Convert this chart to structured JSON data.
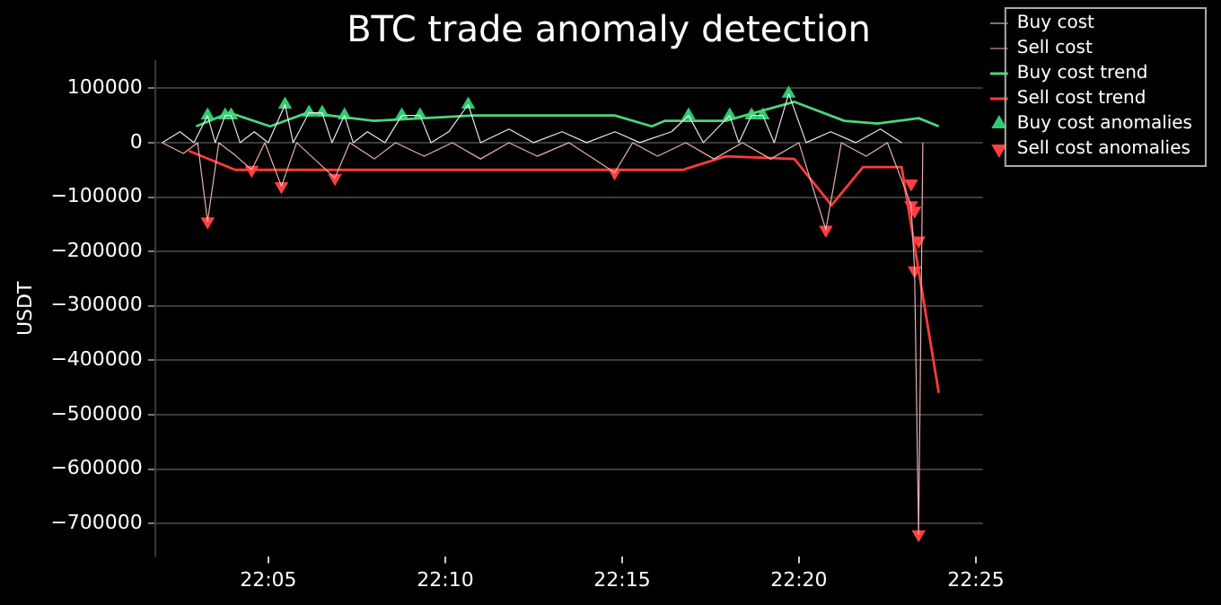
{
  "chart_data": {
    "type": "line",
    "title": "BTC trade anomaly detection",
    "ylabel": "USDT",
    "xlim": [
      22.03,
      22.42
    ],
    "xticks": [
      {
        "value": 22.0833,
        "label": "22:05"
      },
      {
        "value": 22.1667,
        "label": "22:10"
      },
      {
        "value": 22.25,
        "label": "22:15"
      },
      {
        "value": 22.3333,
        "label": "22:20"
      },
      {
        "value": 22.4167,
        "label": "22:25"
      }
    ],
    "ylim": [
      -760000,
      150000
    ],
    "yticks": [
      {
        "value": 100000,
        "label": "100000"
      },
      0,
      {
        "value": -100000,
        "label": "−100000"
      },
      {
        "value": -200000,
        "label": "−200000"
      },
      {
        "value": -300000,
        "label": "−300000"
      },
      {
        "value": -400000,
        "label": "−400000"
      },
      {
        "value": -500000,
        "label": "−500000"
      },
      {
        "value": -600000,
        "label": "−600000"
      },
      {
        "value": -700000,
        "label": "−700000"
      }
    ],
    "grid": "y",
    "legend": "top right",
    "series": [
      {
        "name": "Buy cost",
        "color": "#e8e8e8",
        "x": [
          22.0333,
          22.0417,
          22.0483,
          22.0547,
          22.0583,
          22.063,
          22.0658,
          22.07,
          22.0767,
          22.0833,
          22.0912,
          22.095,
          22.1025,
          22.1087,
          22.1133,
          22.1192,
          22.1233,
          22.13,
          22.1383,
          22.1462,
          22.1548,
          22.16,
          22.1683,
          22.1775,
          22.1833,
          22.1967,
          22.2083,
          22.2217,
          22.2333,
          22.2467,
          22.2583,
          22.2733,
          22.2813,
          22.2883,
          22.3007,
          22.305,
          22.311,
          22.3163,
          22.3217,
          22.3285,
          22.3367,
          22.3483,
          22.36,
          22.3717,
          22.3817
        ],
        "values": [
          0,
          20000,
          0,
          50000,
          0,
          50000,
          50000,
          0,
          20000,
          0,
          70000,
          0,
          55000,
          55000,
          0,
          50000,
          0,
          20000,
          0,
          50000,
          50000,
          0,
          20000,
          70000,
          0,
          25000,
          0,
          20000,
          0,
          20000,
          0,
          20000,
          50000,
          0,
          50000,
          0,
          50000,
          50000,
          0,
          90000,
          0,
          20000,
          0,
          25000,
          0
        ]
      },
      {
        "name": "Sell cost",
        "color": "#e8b0b0",
        "x": [
          22.0333,
          22.0433,
          22.05,
          22.0547,
          22.06,
          22.0683,
          22.0755,
          22.0817,
          22.0895,
          22.0967,
          22.105,
          22.1147,
          22.1217,
          22.1333,
          22.1433,
          22.1567,
          22.17,
          22.1833,
          22.1967,
          22.21,
          22.225,
          22.2367,
          22.2465,
          22.255,
          22.2667,
          22.28,
          22.2933,
          22.3067,
          22.32,
          22.3333,
          22.346,
          22.3533,
          22.365,
          22.375,
          22.3862,
          22.3878,
          22.3897,
          22.3917
        ],
        "values": [
          0,
          -20000,
          0,
          -145000,
          0,
          -25000,
          -50000,
          0,
          -80000,
          0,
          -30000,
          -65000,
          0,
          -30000,
          0,
          -25000,
          0,
          -30000,
          0,
          -25000,
          0,
          -30000,
          -55000,
          0,
          -25000,
          0,
          -30000,
          0,
          -30000,
          0,
          -160000,
          0,
          -25000,
          0,
          -115000,
          -235000,
          -720000,
          0
        ]
      },
      {
        "name": "Buy cost trend",
        "color": "#4cd47a",
        "x": [
          22.0493,
          22.065,
          22.0842,
          22.1017,
          22.133,
          22.1802,
          22.2465,
          22.264,
          22.27,
          22.2988,
          22.3312,
          22.3547,
          22.3703,
          22.3897,
          22.3992
        ],
        "values": [
          30000,
          55000,
          30000,
          55000,
          40000,
          50000,
          50000,
          30000,
          40000,
          40000,
          75000,
          40000,
          35000,
          45000,
          30000
        ]
      },
      {
        "name": "Sell cost trend",
        "color": "#ff3b3b",
        "x": [
          22.0458,
          22.0677,
          22.2787,
          22.2988,
          22.3312,
          22.3487,
          22.3635,
          22.3817,
          22.3992
        ],
        "values": [
          -15000,
          -50000,
          -50000,
          -25000,
          -30000,
          -115000,
          -45000,
          -45000,
          -460000
        ]
      },
      {
        "name": "Buy cost anomalies",
        "type": "scatter",
        "marker": "triangle",
        "color": "#2ecc71",
        "x": [
          22.0547,
          22.063,
          22.0658,
          22.0912,
          22.1025,
          22.1087,
          22.1192,
          22.1462,
          22.1548,
          22.1775,
          22.2813,
          22.3007,
          22.311,
          22.3163,
          22.3285
        ],
        "values": [
          50000,
          50000,
          50000,
          70000,
          55000,
          55000,
          50000,
          50000,
          50000,
          70000,
          50000,
          50000,
          50000,
          50000,
          90000
        ]
      },
      {
        "name": "Sell cost anomalies",
        "type": "scatter",
        "marker": "triangle_down",
        "color": "#ff4040",
        "x": [
          22.0547,
          22.0755,
          22.0895,
          22.1147,
          22.2465,
          22.346,
          22.3862,
          22.3862,
          22.3878,
          22.3878,
          22.3897,
          22.3897
        ],
        "values": [
          -145000,
          -50000,
          -80000,
          -65000,
          -55000,
          -160000,
          -75000,
          -115000,
          -125000,
          -235000,
          -180000,
          -720000
        ]
      }
    ]
  }
}
